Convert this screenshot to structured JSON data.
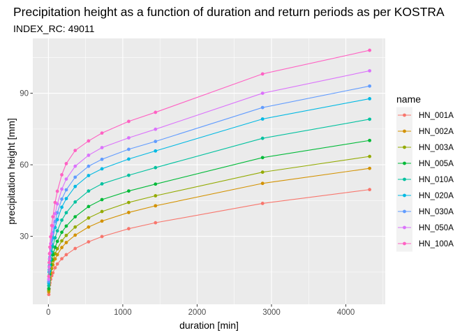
{
  "chart_data": {
    "type": "line",
    "title": "Precipitation height as a function of duration and return periods as per KOSTRA",
    "subtitle": "INDEX_RC: 49011",
    "xlabel": "duration [min]",
    "ylabel": "precipitation height [mm]",
    "xlim": [
      -210,
      4530
    ],
    "ylim": [
      1.5,
      113
    ],
    "xticks": [
      0,
      1000,
      2000,
      3000,
      4000
    ],
    "yticks": [
      30,
      60,
      90
    ],
    "grid": true,
    "legend": {
      "title": "name",
      "position": "right"
    },
    "x": [
      5,
      10,
      15,
      20,
      30,
      45,
      60,
      90,
      120,
      180,
      240,
      360,
      540,
      720,
      1080,
      1440,
      2880,
      4320
    ],
    "series": [
      {
        "name": "HN_001A",
        "color": "#F8766D",
        "values": [
          5.6,
          8.0,
          9.5,
          10.5,
          12.0,
          13.5,
          14.7,
          16.8,
          18.4,
          20.6,
          22.3,
          24.9,
          27.7,
          29.9,
          33.2,
          35.7,
          43.8,
          49.6
        ]
      },
      {
        "name": "HN_002A",
        "color": "#D39200",
        "values": [
          6.7,
          9.6,
          11.4,
          12.7,
          14.6,
          16.5,
          18.0,
          20.5,
          22.3,
          25.3,
          27.4,
          30.5,
          33.9,
          36.4,
          40.0,
          42.8,
          52.2,
          58.5
        ]
      },
      {
        "name": "HN_003A",
        "color": "#93AA00",
        "values": [
          7.4,
          10.6,
          12.5,
          14.0,
          16.1,
          18.2,
          19.9,
          22.7,
          24.8,
          28.1,
          30.4,
          33.9,
          37.7,
          40.4,
          44.2,
          47.0,
          56.9,
          63.5
        ]
      },
      {
        "name": "HN_005A",
        "color": "#00BA38",
        "values": [
          8.1,
          11.7,
          13.9,
          15.5,
          17.9,
          20.3,
          22.3,
          25.4,
          27.9,
          31.7,
          34.3,
          38.2,
          42.5,
          45.4,
          49.0,
          51.9,
          63.0,
          70.2
        ]
      },
      {
        "name": "HN_010A",
        "color": "#00C19F",
        "values": [
          9.3,
          13.3,
          15.8,
          17.6,
          20.4,
          23.4,
          25.7,
          29.4,
          32.3,
          36.8,
          39.9,
          44.4,
          49.0,
          52.0,
          55.6,
          58.8,
          71.1,
          79.1
        ]
      },
      {
        "name": "HN_020A",
        "color": "#00B9E3",
        "values": [
          10.4,
          15.0,
          17.8,
          19.9,
          23.1,
          26.6,
          29.3,
          33.7,
          37.0,
          42.2,
          45.8,
          50.9,
          55.5,
          58.3,
          62.4,
          65.8,
          79.2,
          87.7
        ]
      },
      {
        "name": "HN_030A",
        "color": "#619CFF",
        "values": [
          11.1,
          16.0,
          19.0,
          21.3,
          24.8,
          28.5,
          31.5,
          36.2,
          39.9,
          45.6,
          49.5,
          54.8,
          59.4,
          62.3,
          66.5,
          69.8,
          84.0,
          93.0
        ]
      },
      {
        "name": "HN_050A",
        "color": "#DB72FB",
        "values": [
          12.0,
          17.2,
          20.5,
          23.0,
          26.9,
          31.0,
          34.3,
          39.5,
          43.6,
          49.8,
          54.0,
          59.4,
          64.0,
          67.2,
          71.3,
          74.9,
          90.0,
          99.4
        ]
      },
      {
        "name": "HN_100A",
        "color": "#FF61C3",
        "values": [
          13.2,
          19.0,
          22.7,
          25.5,
          29.8,
          34.5,
          38.2,
          44.2,
          48.9,
          55.8,
          60.5,
          66.0,
          70.0,
          73.3,
          78.2,
          82.0,
          98.1,
          108.0
        ]
      }
    ]
  }
}
